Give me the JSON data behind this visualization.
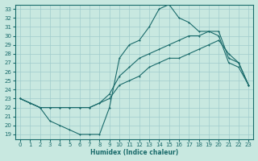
{
  "xlabel": "Humidex (Indice chaleur)",
  "xlim": [
    -0.5,
    23.5
  ],
  "ylim": [
    18.5,
    33.5
  ],
  "yticks": [
    19,
    20,
    21,
    22,
    23,
    24,
    25,
    26,
    27,
    28,
    29,
    30,
    31,
    32,
    33
  ],
  "xticks": [
    0,
    1,
    2,
    3,
    4,
    5,
    6,
    7,
    8,
    9,
    10,
    11,
    12,
    13,
    14,
    15,
    16,
    17,
    18,
    19,
    20,
    21,
    22,
    23
  ],
  "bg_color": "#c8e8e0",
  "grid_color": "#b0d8d0",
  "line_color": "#1a6b6b",
  "line1_x": [
    0,
    1,
    2,
    3,
    4,
    5,
    6,
    7,
    8,
    9,
    10,
    11,
    12,
    13,
    14,
    15,
    16,
    17,
    18,
    19,
    20,
    21,
    22,
    23
  ],
  "line1_y": [
    23.0,
    22.5,
    22.0,
    22.0,
    22.0,
    22.0,
    22.0,
    22.0,
    22.5,
    23.0,
    24.5,
    25.0,
    25.5,
    26.5,
    27.0,
    27.5,
    27.5,
    28.0,
    28.5,
    29.0,
    29.5,
    28.0,
    27.0,
    24.5
  ],
  "line2_x": [
    0,
    1,
    2,
    3,
    4,
    5,
    6,
    7,
    8,
    9,
    10,
    11,
    12,
    13,
    14,
    15,
    16,
    17,
    18,
    19,
    20,
    21,
    22,
    23
  ],
  "line2_y": [
    23.0,
    22.5,
    22.0,
    22.0,
    22.0,
    22.0,
    22.0,
    22.0,
    22.5,
    23.5,
    25.5,
    26.5,
    27.5,
    28.0,
    28.5,
    29.0,
    29.5,
    30.0,
    30.0,
    30.5,
    30.5,
    27.5,
    27.0,
    24.5
  ],
  "line3_x": [
    0,
    1,
    2,
    3,
    4,
    5,
    6,
    7,
    8,
    9,
    10,
    11,
    12,
    13,
    14,
    15,
    16,
    17,
    18,
    19,
    20,
    21,
    22,
    23
  ],
  "line3_y": [
    23.0,
    22.5,
    22.0,
    20.5,
    20.0,
    19.5,
    19.0,
    19.0,
    19.0,
    22.0,
    27.5,
    29.0,
    29.5,
    31.0,
    33.0,
    33.5,
    32.0,
    31.5,
    30.5,
    30.5,
    30.0,
    27.0,
    26.5,
    24.5
  ]
}
